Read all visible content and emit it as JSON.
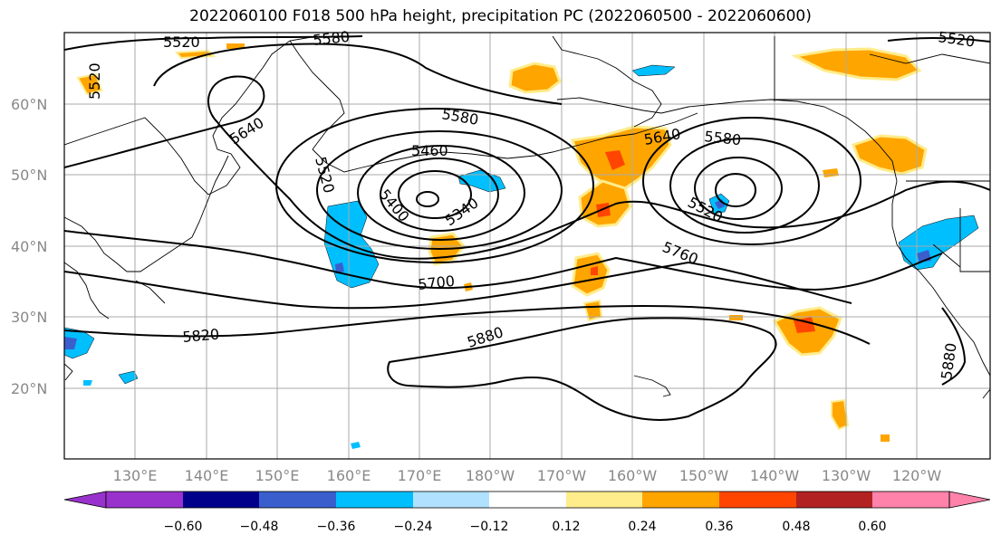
{
  "title": "2022060100 F018 500 hPa height, precipitation PC (2022060500 - 2022060600)",
  "lat_labels": [
    "60°N",
    "50°N",
    "40°N",
    "30°N",
    "20°N"
  ],
  "lon_labels": [
    "130°E",
    "140°E",
    "150°E",
    "160°E",
    "170°E",
    "180°W",
    "170°W",
    "160°W",
    "150°W",
    "140°W",
    "130°W",
    "120°W"
  ],
  "contour_labels": [
    "5520",
    "5580",
    "5520",
    "5640",
    "5580",
    "5460",
    "5520",
    "5400",
    "5340",
    "5580",
    "5640",
    "5520",
    "5760",
    "5700",
    "5820",
    "5880",
    "5880",
    "5520"
  ],
  "colorbar": {
    "ticks": [
      "−0.60",
      "−0.48",
      "−0.36",
      "−0.24",
      "−0.12",
      "0.12",
      "0.24",
      "0.36",
      "0.48",
      "0.60"
    ],
    "colors": [
      "#9932cc",
      "#00008b",
      "#3a5fcd",
      "#00bfff",
      "#b0e2ff",
      "#ffffff",
      "#ffec8b",
      "#ffa500",
      "#ff4500",
      "#b22222",
      "#ff82ab"
    ]
  },
  "colors": {
    "neg_light": "#b0e2ff",
    "neg_mid": "#00bfff",
    "neg_dark": "#3a5fcd",
    "pos_light": "#ffec8b",
    "pos_mid": "#ffa500",
    "pos_dark": "#ff4500"
  }
}
